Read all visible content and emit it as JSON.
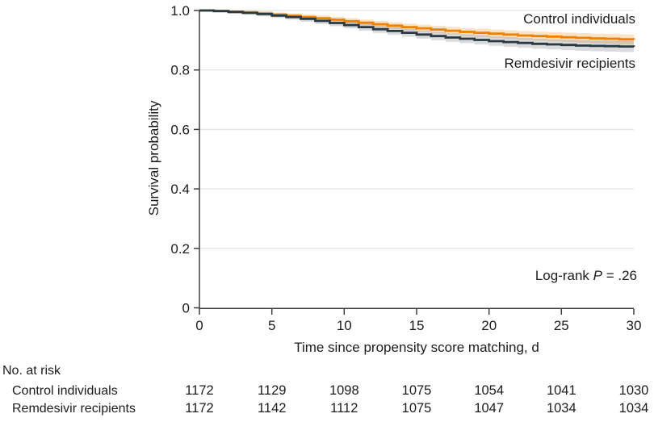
{
  "colors": {
    "control_line": "#ee8100",
    "control_band": "rgba(238,129,0,0.22)",
    "remdesivir_line": "#2b3a42",
    "remdesivir_band": "rgba(43,58,66,0.18)",
    "grid": "#e2e2e2",
    "axis": "#3f3f3f",
    "text": "#1c1c1c"
  },
  "chart_data": {
    "type": "line",
    "subtype": "kaplan-meier-step",
    "xlabel": "Time since propensity score matching, d",
    "ylabel": "Survival probability",
    "xlim": [
      0,
      30
    ],
    "ylim": [
      0,
      1
    ],
    "grid": "horizontal",
    "xticks": {
      "labels": [
        "0",
        "5",
        "10",
        "15",
        "20",
        "25",
        "30"
      ],
      "values": [
        0,
        5,
        10,
        15,
        20,
        25,
        30
      ]
    },
    "yticks": {
      "labels": [
        "1.0",
        "0.8",
        "0.6",
        "0.4",
        "0.2",
        "0"
      ],
      "values": [
        1.0,
        0.8,
        0.6,
        0.4,
        0.2,
        0
      ]
    },
    "x_days": [
      0,
      1,
      2,
      3,
      4,
      5,
      6,
      7,
      8,
      9,
      10,
      11,
      12,
      13,
      14,
      15,
      16,
      17,
      18,
      19,
      20,
      21,
      22,
      23,
      24,
      25,
      26,
      27,
      28,
      29,
      30
    ],
    "series": [
      {
        "id": "control",
        "name": "Control individuals",
        "color": "#ee8100",
        "ci_color": "rgba(238,129,0,0.22)",
        "values": [
          1.0,
          0.998,
          0.996,
          0.993,
          0.99,
          0.986,
          0.982,
          0.978,
          0.974,
          0.969,
          0.964,
          0.959,
          0.954,
          0.949,
          0.944,
          0.94,
          0.936,
          0.932,
          0.928,
          0.925,
          0.922,
          0.919,
          0.916,
          0.914,
          0.912,
          0.91,
          0.908,
          0.906,
          0.905,
          0.903,
          0.902
        ],
        "ci_halfwidth": [
          0.001,
          0.0039,
          0.0051,
          0.0061,
          0.0068,
          0.0075,
          0.0082,
          0.0087,
          0.0093,
          0.0098,
          0.0102,
          0.0107,
          0.0111,
          0.0115,
          0.0119,
          0.0123,
          0.0127,
          0.013,
          0.0134,
          0.0137,
          0.0141,
          0.0144,
          0.0147,
          0.015,
          0.0153,
          0.0156,
          0.0159,
          0.0162,
          0.0165,
          0.0167,
          0.017
        ]
      },
      {
        "id": "remdesivir",
        "name": "Remdesivir recipients",
        "color": "#2b3a42",
        "ci_color": "rgba(43,58,66,0.18)",
        "values": [
          1.0,
          0.998,
          0.995,
          0.992,
          0.988,
          0.983,
          0.978,
          0.972,
          0.965,
          0.958,
          0.951,
          0.944,
          0.937,
          0.931,
          0.925,
          0.919,
          0.914,
          0.909,
          0.905,
          0.901,
          0.897,
          0.894,
          0.891,
          0.888,
          0.886,
          0.884,
          0.882,
          0.881,
          0.88,
          0.879,
          0.878
        ],
        "ci_halfwidth": [
          0.001,
          0.0043,
          0.0056,
          0.0067,
          0.0076,
          0.0083,
          0.009,
          0.0097,
          0.0103,
          0.0109,
          0.0114,
          0.0119,
          0.0124,
          0.0128,
          0.0133,
          0.0137,
          0.0141,
          0.0146,
          0.0149,
          0.0153,
          0.0157,
          0.0161,
          0.0164,
          0.0168,
          0.0171,
          0.0174,
          0.0178,
          0.0181,
          0.0184,
          0.0187,
          0.019
        ]
      }
    ],
    "annotation": {
      "prefix": "Log-rank ",
      "p_symbol": "P",
      "suffix": " = .26"
    }
  },
  "risk_table": {
    "header": "No. at risk",
    "count_days": [
      0,
      5,
      10,
      15,
      20,
      25,
      30
    ],
    "rows": [
      {
        "label": "Control individuals",
        "counts": [
          "1172",
          "1129",
          "1098",
          "1075",
          "1054",
          "1041",
          "1030"
        ]
      },
      {
        "label": "Remdesivir recipients",
        "counts": [
          "1172",
          "1142",
          "1112",
          "1075",
          "1047",
          "1034",
          "1034"
        ]
      }
    ]
  }
}
